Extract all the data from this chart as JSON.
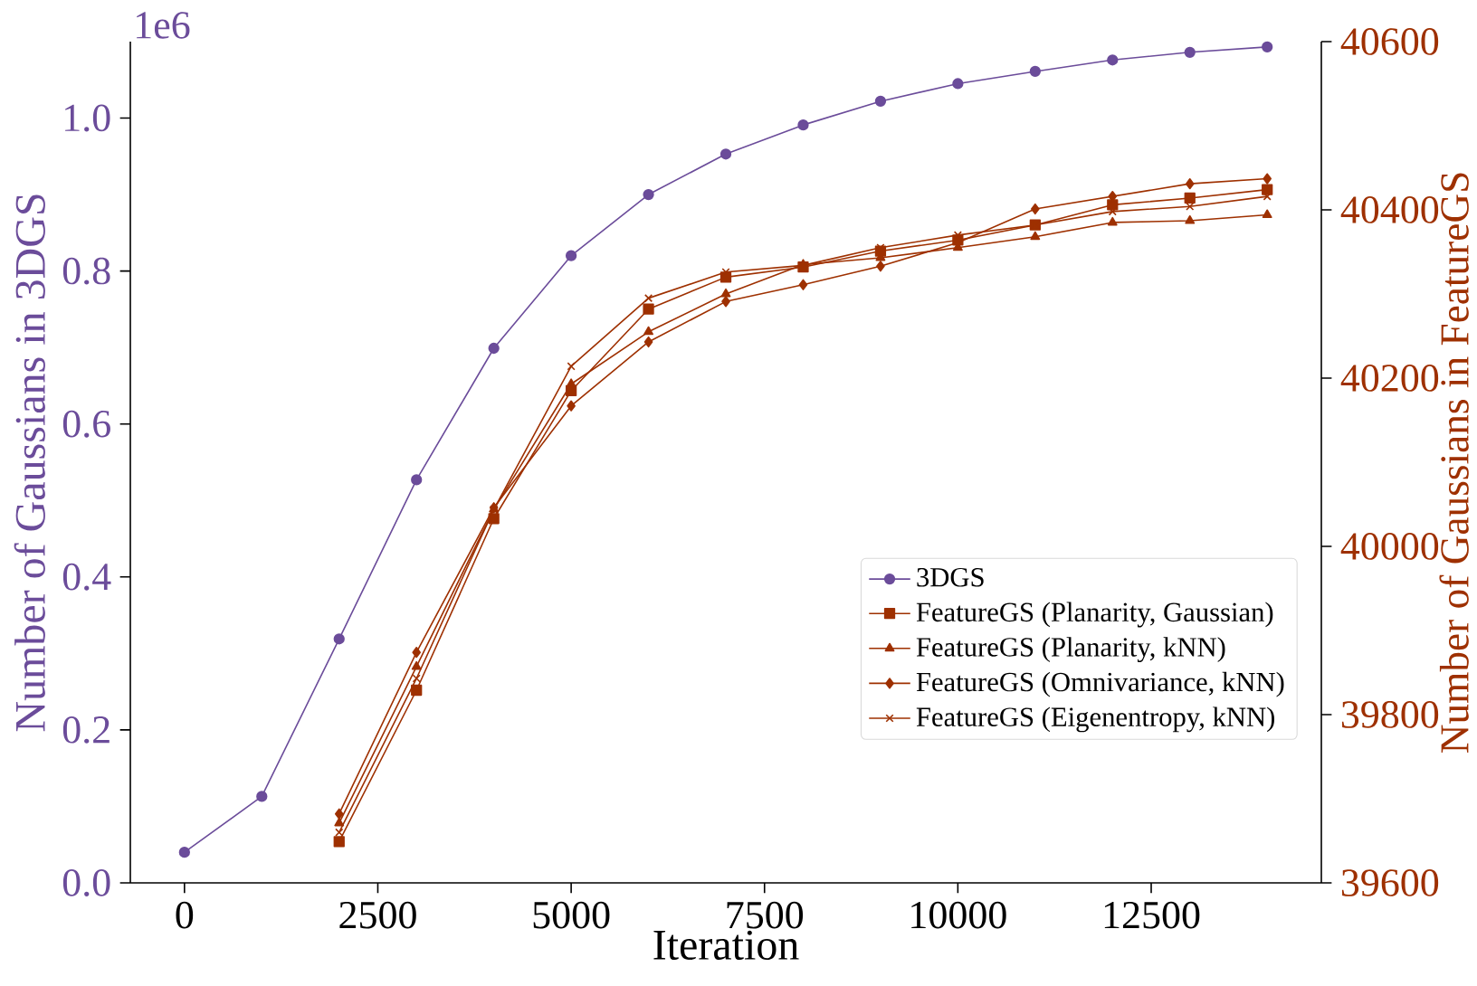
{
  "chart_data": {
    "type": "line",
    "xlabel": "Iteration",
    "ylabel": "Number of Gaussians in 3DGS",
    "y2label": "Number of Gaussians in FeatureGS",
    "annotations": [
      "1e6"
    ],
    "x": [
      0,
      1000,
      2000,
      3000,
      4000,
      5000,
      6000,
      7000,
      8000,
      9000,
      10000,
      11000,
      12000,
      13000,
      14000
    ],
    "xlim": [
      -700,
      14700
    ],
    "xticks": [
      0,
      2500,
      5000,
      7500,
      10000,
      12500
    ],
    "ylim": [
      0,
      1.1
    ],
    "yticks": [
      {
        "value": 0,
        "label": "0.0"
      },
      0.2,
      0.4,
      0.6,
      0.8,
      {
        "value": 1,
        "label": "1.0"
      }
    ],
    "y2lim": [
      39600,
      40600
    ],
    "y2ticks": [
      39600,
      39800,
      40000,
      40200,
      40400,
      40600
    ],
    "legend": "lower right",
    "grid": false,
    "series": [
      {
        "name": "3DGS",
        "color": "#6b4c9a",
        "marker": "circle",
        "values": [
          0.04,
          0.113,
          0.319,
          0.527,
          0.699,
          0.82,
          0.9,
          0.953,
          0.991,
          1.022,
          1.045,
          1.061,
          1.076,
          1.086,
          1.093
        ]
      },
      {
        "name": "FeatureGS (Planarity, Gaussian)",
        "color": "#9e3000",
        "marker": "square",
        "axis": "y2",
        "values": [
          null,
          null,
          39649,
          39829,
          40033,
          40185,
          40282,
          40320,
          40332,
          40351,
          40364,
          40382,
          40406,
          40414,
          40424
        ]
      },
      {
        "name": "FeatureGS (Planarity, kNN)",
        "color": "#9e3000",
        "marker": "triangle",
        "axis": "y2",
        "values": [
          null,
          null,
          39671,
          39857,
          40044,
          40193,
          40255,
          40300,
          40335,
          40343,
          40355,
          40368,
          40385,
          40387,
          40394
        ]
      },
      {
        "name": "FeatureGS (Omnivariance, kNN)",
        "color": "#9e3000",
        "marker": "diamond",
        "axis": "y2",
        "values": [
          null,
          null,
          39682,
          39874,
          40046,
          40167,
          40243,
          40291,
          40311,
          40333,
          40361,
          40401,
          40416,
          40431,
          40437
        ]
      },
      {
        "name": "FeatureGS (Eigenentropy, kNN)",
        "color": "#9e3000",
        "marker": "cross",
        "axis": "y2",
        "values": [
          null,
          null,
          39660,
          39843,
          40044,
          40214,
          40295,
          40326,
          40334,
          40355,
          40370,
          40382,
          40398,
          40404,
          40416
        ]
      }
    ]
  }
}
